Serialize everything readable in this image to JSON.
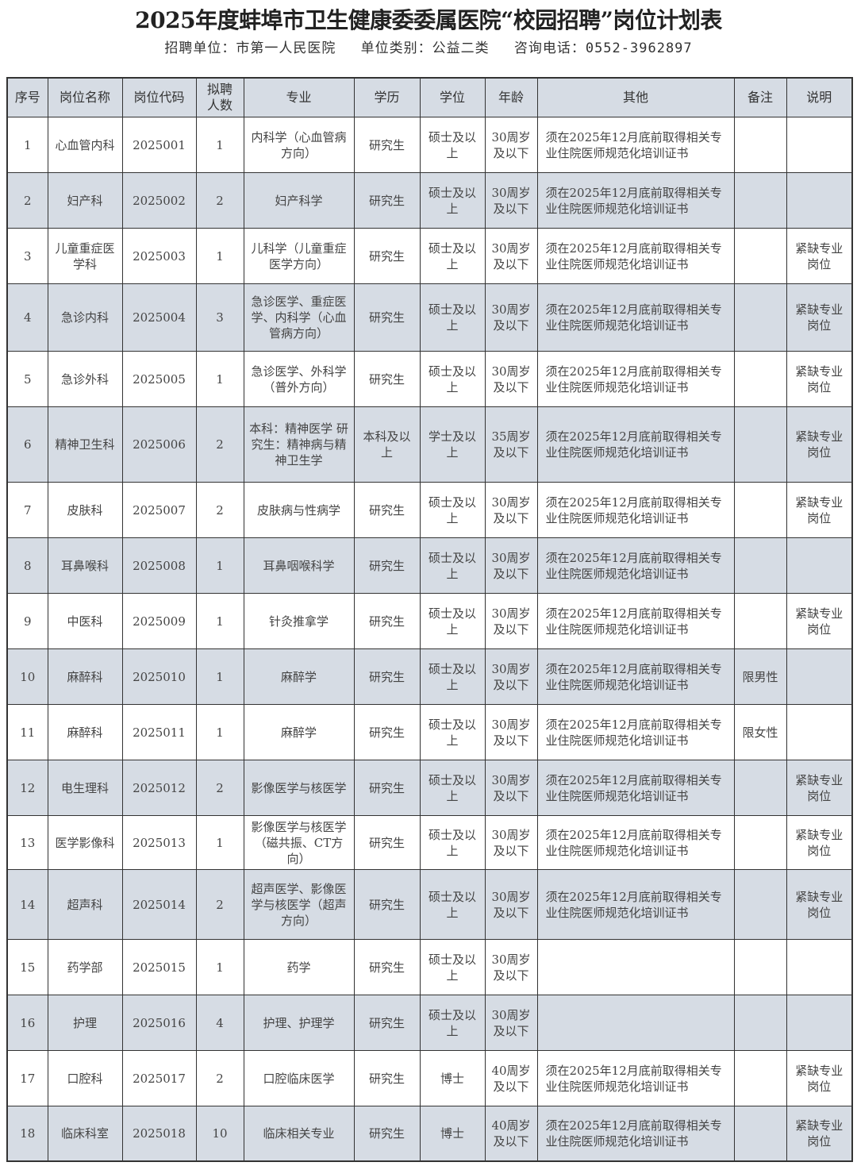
{
  "title": "2025年度蚌埠市卫生健康委委属医院“校园招聘”岗位计划表",
  "subtitle": {
    "unit": "招聘单位：市第一人民医院",
    "category": "单位类别：公益二类",
    "phone": "咨询电话：0552-3962897"
  },
  "colors": {
    "header_bg": "#d6dce4",
    "shaded_row_bg": "#d6dce4",
    "border": "#333333"
  },
  "table": {
    "headers": [
      "序号",
      "岗位名称",
      "岗位代码",
      "拟聘人数",
      "专业",
      "学历",
      "学位",
      "年龄",
      "其他",
      "备注",
      "说明"
    ],
    "rows": [
      [
        "1",
        "心血管内科",
        "2025001",
        "1",
        "内科学（心血管病方向）",
        "研究生",
        "硕士及以上",
        "30周岁及以下",
        "须在2025年12月底前取得相关专业住院医师规范化培训证书",
        "",
        ""
      ],
      [
        "2",
        "妇产科",
        "2025002",
        "2",
        "妇产科学",
        "研究生",
        "硕士及以上",
        "30周岁及以下",
        "须在2025年12月底前取得相关专业住院医师规范化培训证书",
        "",
        ""
      ],
      [
        "3",
        "儿童重症医学科",
        "2025003",
        "1",
        "儿科学（儿童重症医学方向）",
        "研究生",
        "硕士及以上",
        "30周岁及以下",
        "须在2025年12月底前取得相关专业住院医师规范化培训证书",
        "",
        "紧缺专业岗位"
      ],
      [
        "4",
        "急诊内科",
        "2025004",
        "3",
        "急诊医学、重症医学、内科学（心血管病方向）",
        "研究生",
        "硕士及以上",
        "30周岁及以下",
        "须在2025年12月底前取得相关专业住院医师规范化培训证书",
        "",
        "紧缺专业岗位"
      ],
      [
        "5",
        "急诊外科",
        "2025005",
        "1",
        "急诊医学、外科学（普外方向）",
        "研究生",
        "硕士及以上",
        "30周岁及以下",
        "须在2025年12月底前取得相关专业住院医师规范化培训证书",
        "",
        "紧缺专业岗位"
      ],
      [
        "6",
        "精神卫生科",
        "2025006",
        "2",
        "本科：精神医学 研究生：精神病与精神卫生学",
        "本科及以上",
        "学士及以上",
        "35周岁及以下",
        "须在2025年12月底前取得相关专业住院医师规范化培训证书",
        "",
        "紧缺专业岗位"
      ],
      [
        "7",
        "皮肤科",
        "2025007",
        "2",
        "皮肤病与性病学",
        "研究生",
        "硕士及以上",
        "30周岁及以下",
        "须在2025年12月底前取得相关专业住院医师规范化培训证书",
        "",
        "紧缺专业岗位"
      ],
      [
        "8",
        "耳鼻喉科",
        "2025008",
        "1",
        "耳鼻咽喉科学",
        "研究生",
        "硕士及以上",
        "30周岁及以下",
        "须在2025年12月底前取得相关专业住院医师规范化培训证书",
        "",
        ""
      ],
      [
        "9",
        "中医科",
        "2025009",
        "1",
        "针灸推拿学",
        "研究生",
        "硕士及以上",
        "30周岁及以下",
        "须在2025年12月底前取得相关专业住院医师规范化培训证书",
        "",
        "紧缺专业岗位"
      ],
      [
        "10",
        "麻醉科",
        "2025010",
        "1",
        "麻醉学",
        "研究生",
        "硕士及以上",
        "30周岁及以下",
        "须在2025年12月底前取得相关专业住院医师规范化培训证书",
        "限男性",
        ""
      ],
      [
        "11",
        "麻醉科",
        "2025011",
        "1",
        "麻醉学",
        "研究生",
        "硕士及以上",
        "30周岁及以下",
        "须在2025年12月底前取得相关专业住院医师规范化培训证书",
        "限女性",
        ""
      ],
      [
        "12",
        "电生理科",
        "2025012",
        "2",
        "影像医学与核医学",
        "研究生",
        "硕士及以上",
        "30周岁及以下",
        "须在2025年12月底前取得相关专业住院医师规范化培训证书",
        "",
        "紧缺专业岗位"
      ],
      [
        "13",
        "医学影像科",
        "2025013",
        "1",
        "影像医学与核医学（磁共振、CT方向）",
        "研究生",
        "硕士及以上",
        "30周岁及以下",
        "须在2025年12月底前取得相关专业住院医师规范化培训证书",
        "",
        "紧缺专业岗位"
      ],
      [
        "14",
        "超声科",
        "2025014",
        "2",
        "超声医学、影像医学与核医学（超声方向）",
        "研究生",
        "硕士及以上",
        "30周岁及以下",
        "须在2025年12月底前取得相关专业住院医师规范化培训证书",
        "",
        "紧缺专业岗位"
      ],
      [
        "15",
        "药学部",
        "2025015",
        "1",
        "药学",
        "研究生",
        "硕士及以上",
        "30周岁及以下",
        "",
        "",
        ""
      ],
      [
        "16",
        "护理",
        "2025016",
        "4",
        "护理、护理学",
        "研究生",
        "硕士及以上",
        "30周岁及以下",
        "",
        "",
        ""
      ],
      [
        "17",
        "口腔科",
        "2025017",
        "2",
        "口腔临床医学",
        "研究生",
        "博士",
        "40周岁及以下",
        "须在2025年12月底前取得相关专业住院医师规范化培训证书",
        "",
        "紧缺专业岗位"
      ],
      [
        "18",
        "临床科室",
        "2025018",
        "10",
        "临床相关专业",
        "研究生",
        "博士",
        "40周岁及以下",
        "须在2025年12月底前取得相关专业住院医师规范化培训证书",
        "",
        "紧缺专业岗位"
      ]
    ]
  }
}
